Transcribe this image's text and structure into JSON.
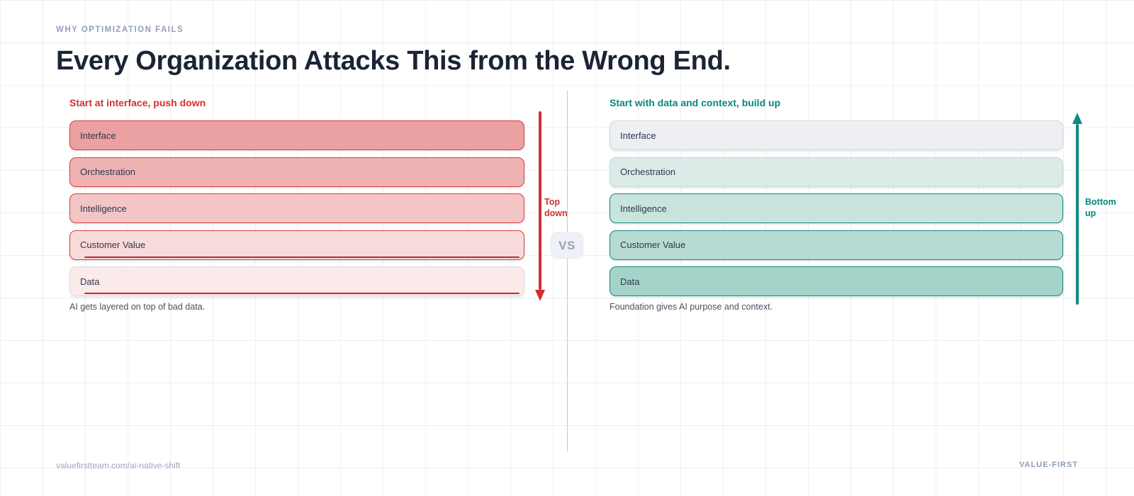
{
  "slide": {
    "eyebrow": "WHY OPTIMIZATION FAILS",
    "title": "Every Organization Attacks This from the Wrong End.",
    "vs_label": "VS",
    "footer_url": "valuefirstteam.com/ai-native-shift",
    "footer_brand": "VALUE-FIRST"
  },
  "colors": {
    "red_accent": "#d32f2f",
    "red_underline": "#c62828",
    "teal_accent": "#00897b",
    "teal_arrow": "#0d8b7d",
    "title_text": "#1b2434",
    "muted_text": "#93a0b4",
    "caption_text": "#4a5260",
    "divider": "#bfcad8",
    "grid_line": "#f0f0f2"
  },
  "left_panel": {
    "heading": "Start at interface, push down",
    "caption": "AI gets layered on top of bad data.",
    "arrow_label": "Top down",
    "direction": "top-down",
    "layers": [
      {
        "label": "Interface",
        "fill": "#eba1a1",
        "border": "#d73c3c",
        "underline": false
      },
      {
        "label": "Orchestration",
        "fill": "#efb2b2",
        "border": "#d73c3c",
        "underline": false
      },
      {
        "label": "Intelligence",
        "fill": "#f3c5c5",
        "border": "#d73c3c",
        "underline": false
      },
      {
        "label": "Customer Value",
        "fill": "#f7dada",
        "border": "#d73c3c",
        "underline": true
      },
      {
        "label": "Data",
        "fill": "#fbeaea",
        "border": "#dadce2",
        "underline": true
      }
    ]
  },
  "right_panel": {
    "heading": "Start with data and context, build up",
    "caption": "Foundation gives AI purpose and context.",
    "arrow_label": "Bottom up",
    "direction": "bottom-up",
    "layers": [
      {
        "label": "Interface",
        "fill": "#edeff2",
        "border": "#d3d8de",
        "underline": false
      },
      {
        "label": "Orchestration",
        "fill": "#dcebe8",
        "border": "#c2d8d4",
        "underline": false
      },
      {
        "label": "Intelligence",
        "fill": "#c9e3dd",
        "border": "#0d8b7d",
        "underline": false
      },
      {
        "label": "Customer Value",
        "fill": "#b7dbd3",
        "border": "#0d8b7d",
        "underline": false
      },
      {
        "label": "Data",
        "fill": "#a6d3c9",
        "border": "#0d8b7d",
        "underline": false
      }
    ]
  }
}
